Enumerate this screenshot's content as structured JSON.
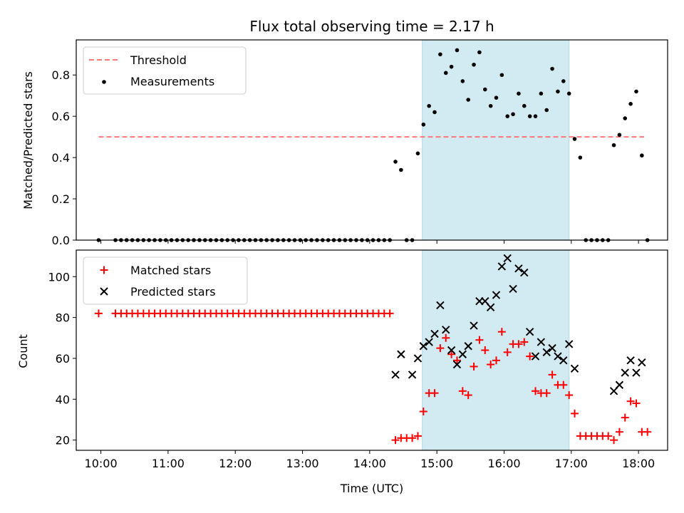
{
  "title": "Flux total observing time = 2.17 h",
  "xlabel": "Time (UTC)",
  "colors": {
    "threshold": "#ff7777",
    "measurement": "#000000",
    "matched": "#ff0000",
    "predicted": "#000000",
    "shade": "#add8e6"
  },
  "chart_data": [
    {
      "type": "scatter",
      "ylabel": "Matched/Predicted stars",
      "ylim": [
        0,
        0.97
      ],
      "xlim": [
        "09:38",
        "18:26"
      ],
      "yticks": [
        "0.0",
        "0.2",
        "0.4",
        "0.6",
        "0.8"
      ],
      "shaded_interval": [
        "14:47",
        "16:58"
      ],
      "legend": {
        "position": "upper left",
        "entries": [
          "Threshold",
          "Measurements"
        ]
      },
      "threshold": {
        "name": "Threshold",
        "y": 0.5,
        "x_range": [
          "09:58",
          "18:05"
        ]
      },
      "series": [
        {
          "name": "Measurements",
          "points": [
            [
              "09:58",
              0
            ],
            [
              "10:13",
              0
            ],
            [
              "10:18",
              0
            ],
            [
              "10:23",
              0
            ],
            [
              "10:28",
              0
            ],
            [
              "10:33",
              0
            ],
            [
              "10:38",
              0
            ],
            [
              "10:43",
              0
            ],
            [
              "10:48",
              0
            ],
            [
              "10:53",
              0
            ],
            [
              "10:58",
              0
            ],
            [
              "11:03",
              0
            ],
            [
              "11:08",
              0
            ],
            [
              "11:13",
              0
            ],
            [
              "11:18",
              0
            ],
            [
              "11:23",
              0
            ],
            [
              "11:28",
              0
            ],
            [
              "11:33",
              0
            ],
            [
              "11:38",
              0
            ],
            [
              "11:43",
              0
            ],
            [
              "11:48",
              0
            ],
            [
              "11:53",
              0
            ],
            [
              "11:58",
              0
            ],
            [
              "12:03",
              0
            ],
            [
              "12:08",
              0
            ],
            [
              "12:13",
              0
            ],
            [
              "12:18",
              0
            ],
            [
              "12:23",
              0
            ],
            [
              "12:28",
              0
            ],
            [
              "12:33",
              0
            ],
            [
              "12:38",
              0
            ],
            [
              "12:43",
              0
            ],
            [
              "12:48",
              0
            ],
            [
              "12:53",
              0
            ],
            [
              "12:58",
              0
            ],
            [
              "13:03",
              0
            ],
            [
              "13:08",
              0
            ],
            [
              "13:13",
              0
            ],
            [
              "13:18",
              0
            ],
            [
              "13:23",
              0
            ],
            [
              "13:28",
              0
            ],
            [
              "13:33",
              0
            ],
            [
              "13:38",
              0
            ],
            [
              "13:43",
              0
            ],
            [
              "13:48",
              0
            ],
            [
              "13:53",
              0
            ],
            [
              "13:58",
              0
            ],
            [
              "14:03",
              0
            ],
            [
              "14:08",
              0
            ],
            [
              "14:13",
              0
            ],
            [
              "14:18",
              0
            ],
            [
              "14:23",
              0.38
            ],
            [
              "14:28",
              0.34
            ],
            [
              "14:33",
              0
            ],
            [
              "14:38",
              0
            ],
            [
              "14:43",
              0.42
            ],
            [
              "14:48",
              0.56
            ],
            [
              "14:53",
              0.65
            ],
            [
              "14:58",
              0.62
            ],
            [
              "15:03",
              0.9
            ],
            [
              "15:08",
              0.81
            ],
            [
              "15:13",
              0.84
            ],
            [
              "15:18",
              0.92
            ],
            [
              "15:23",
              0.77
            ],
            [
              "15:28",
              0.68
            ],
            [
              "15:33",
              0.85
            ],
            [
              "15:38",
              0.91
            ],
            [
              "15:43",
              0.73
            ],
            [
              "15:48",
              0.65
            ],
            [
              "15:53",
              0.69
            ],
            [
              "15:58",
              0.8
            ],
            [
              "16:03",
              0.6
            ],
            [
              "16:08",
              0.61
            ],
            [
              "16:13",
              0.71
            ],
            [
              "16:18",
              0.65
            ],
            [
              "16:23",
              0.6
            ],
            [
              "16:28",
              0.6
            ],
            [
              "16:33",
              0.71
            ],
            [
              "16:38",
              0.63
            ],
            [
              "16:43",
              0.83
            ],
            [
              "16:48",
              0.72
            ],
            [
              "16:53",
              0.77
            ],
            [
              "16:58",
              0.71
            ],
            [
              "17:03",
              0.49
            ],
            [
              "17:08",
              0.4
            ],
            [
              "17:13",
              0
            ],
            [
              "17:18",
              0
            ],
            [
              "17:23",
              0
            ],
            [
              "17:28",
              0
            ],
            [
              "17:33",
              0
            ],
            [
              "17:38",
              0.46
            ],
            [
              "17:43",
              0.51
            ],
            [
              "17:48",
              0.59
            ],
            [
              "17:53",
              0.66
            ],
            [
              "17:58",
              0.72
            ],
            [
              "18:03",
              0.41
            ],
            [
              "18:08",
              0
            ]
          ]
        }
      ]
    },
    {
      "type": "scatter",
      "ylabel": "Count",
      "ylim": [
        15,
        113
      ],
      "xlim": [
        "09:38",
        "18:26"
      ],
      "yticks": [
        "20",
        "40",
        "60",
        "80",
        "100"
      ],
      "xticks": [
        "10:00",
        "11:00",
        "12:00",
        "13:00",
        "14:00",
        "15:00",
        "16:00",
        "17:00",
        "18:00"
      ],
      "shaded_interval": [
        "14:47",
        "16:58"
      ],
      "legend": {
        "position": "upper left",
        "entries": [
          "Matched stars",
          "Predicted stars"
        ]
      },
      "series": [
        {
          "name": "Matched stars",
          "marker": "+",
          "points": [
            [
              "09:58",
              82
            ],
            [
              "10:13",
              82
            ],
            [
              "10:18",
              82
            ],
            [
              "10:23",
              82
            ],
            [
              "10:28",
              82
            ],
            [
              "10:33",
              82
            ],
            [
              "10:38",
              82
            ],
            [
              "10:43",
              82
            ],
            [
              "10:48",
              82
            ],
            [
              "10:53",
              82
            ],
            [
              "10:58",
              82
            ],
            [
              "11:03",
              82
            ],
            [
              "11:08",
              82
            ],
            [
              "11:13",
              82
            ],
            [
              "11:18",
              82
            ],
            [
              "11:23",
              82
            ],
            [
              "11:28",
              82
            ],
            [
              "11:33",
              82
            ],
            [
              "11:38",
              82
            ],
            [
              "11:43",
              82
            ],
            [
              "11:48",
              82
            ],
            [
              "11:53",
              82
            ],
            [
              "11:58",
              82
            ],
            [
              "12:03",
              82
            ],
            [
              "12:08",
              82
            ],
            [
              "12:13",
              82
            ],
            [
              "12:18",
              82
            ],
            [
              "12:23",
              82
            ],
            [
              "12:28",
              82
            ],
            [
              "12:33",
              82
            ],
            [
              "12:38",
              82
            ],
            [
              "12:43",
              82
            ],
            [
              "12:48",
              82
            ],
            [
              "12:53",
              82
            ],
            [
              "12:58",
              82
            ],
            [
              "13:03",
              82
            ],
            [
              "13:08",
              82
            ],
            [
              "13:13",
              82
            ],
            [
              "13:18",
              82
            ],
            [
              "13:23",
              82
            ],
            [
              "13:28",
              82
            ],
            [
              "13:33",
              82
            ],
            [
              "13:38",
              82
            ],
            [
              "13:43",
              82
            ],
            [
              "13:48",
              82
            ],
            [
              "13:53",
              82
            ],
            [
              "13:58",
              82
            ],
            [
              "14:03",
              82
            ],
            [
              "14:08",
              82
            ],
            [
              "14:13",
              82
            ],
            [
              "14:18",
              82
            ],
            [
              "14:23",
              20
            ],
            [
              "14:28",
              21
            ],
            [
              "14:33",
              21
            ],
            [
              "14:38",
              21
            ],
            [
              "14:43",
              22
            ],
            [
              "14:48",
              34
            ],
            [
              "14:53",
              43
            ],
            [
              "14:58",
              43
            ],
            [
              "15:03",
              65
            ],
            [
              "15:08",
              70
            ],
            [
              "15:13",
              62
            ],
            [
              "15:18",
              59
            ],
            [
              "15:23",
              44
            ],
            [
              "15:28",
              42
            ],
            [
              "15:33",
              56
            ],
            [
              "15:38",
              69
            ],
            [
              "15:43",
              64
            ],
            [
              "15:48",
              57
            ],
            [
              "15:53",
              59
            ],
            [
              "15:58",
              73
            ],
            [
              "16:03",
              63
            ],
            [
              "16:08",
              67
            ],
            [
              "16:13",
              67
            ],
            [
              "16:18",
              68
            ],
            [
              "16:23",
              61
            ],
            [
              "16:28",
              44
            ],
            [
              "16:33",
              43
            ],
            [
              "16:38",
              43
            ],
            [
              "16:43",
              52
            ],
            [
              "16:48",
              47
            ],
            [
              "16:53",
              47
            ],
            [
              "16:58",
              42
            ],
            [
              "17:03",
              33
            ],
            [
              "17:08",
              22
            ],
            [
              "17:13",
              22
            ],
            [
              "17:18",
              22
            ],
            [
              "17:23",
              22
            ],
            [
              "17:28",
              22
            ],
            [
              "17:33",
              22
            ],
            [
              "17:38",
              20
            ],
            [
              "17:43",
              24
            ],
            [
              "17:48",
              31
            ],
            [
              "17:53",
              39
            ],
            [
              "17:58",
              38
            ],
            [
              "18:03",
              24
            ],
            [
              "18:08",
              24
            ]
          ]
        },
        {
          "name": "Predicted stars",
          "marker": "x",
          "points": [
            [
              "14:23",
              52
            ],
            [
              "14:28",
              62
            ],
            [
              "14:38",
              52
            ],
            [
              "14:43",
              60
            ],
            [
              "14:48",
              66
            ],
            [
              "14:53",
              68
            ],
            [
              "14:58",
              72
            ],
            [
              "15:03",
              86
            ],
            [
              "15:08",
              74
            ],
            [
              "15:13",
              64
            ],
            [
              "15:18",
              57
            ],
            [
              "15:23",
              62
            ],
            [
              "15:28",
              66
            ],
            [
              "15:33",
              76
            ],
            [
              "15:38",
              88
            ],
            [
              "15:43",
              88
            ],
            [
              "15:48",
              85
            ],
            [
              "15:53",
              91
            ],
            [
              "15:58",
              105
            ],
            [
              "16:03",
              109
            ],
            [
              "16:08",
              94
            ],
            [
              "16:13",
              104
            ],
            [
              "16:18",
              102
            ],
            [
              "16:23",
              73
            ],
            [
              "16:28",
              61
            ],
            [
              "16:33",
              68
            ],
            [
              "16:38",
              63
            ],
            [
              "16:43",
              65
            ],
            [
              "16:48",
              61
            ],
            [
              "16:53",
              59
            ],
            [
              "16:58",
              67
            ],
            [
              "17:03",
              55
            ],
            [
              "17:38",
              44
            ],
            [
              "17:43",
              47
            ],
            [
              "17:48",
              53
            ],
            [
              "17:53",
              59
            ],
            [
              "17:58",
              53
            ],
            [
              "18:03",
              58
            ]
          ]
        }
      ]
    }
  ]
}
